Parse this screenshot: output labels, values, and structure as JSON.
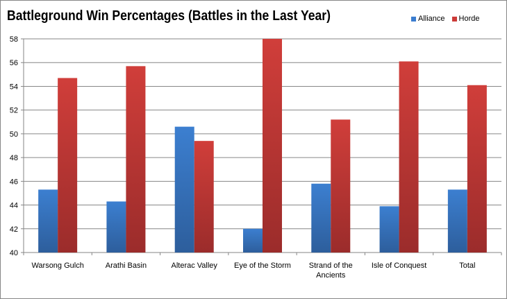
{
  "chart_data": {
    "type": "bar",
    "title": "Battleground Win Percentages (Battles in the Last Year)",
    "xlabel": "",
    "ylabel": "",
    "ylim": [
      40,
      58
    ],
    "yticks": [
      40,
      42,
      44,
      46,
      48,
      50,
      52,
      54,
      56,
      58
    ],
    "grid": true,
    "legend_position": "top-right",
    "categories": [
      "Warsong Gulch",
      "Arathi Basin",
      "Alterac Valley",
      "Eye of the Storm",
      "Strand of the Ancients",
      "Isle of Conquest",
      "Total"
    ],
    "series": [
      {
        "name": "Alliance",
        "color": "#3b7dcf",
        "values": [
          45.3,
          44.3,
          50.6,
          42.0,
          45.8,
          43.9,
          45.3
        ]
      },
      {
        "name": "Horde",
        "color": "#cc3b38",
        "values": [
          54.7,
          55.7,
          49.4,
          58.0,
          51.2,
          56.1,
          54.1
        ]
      }
    ]
  }
}
